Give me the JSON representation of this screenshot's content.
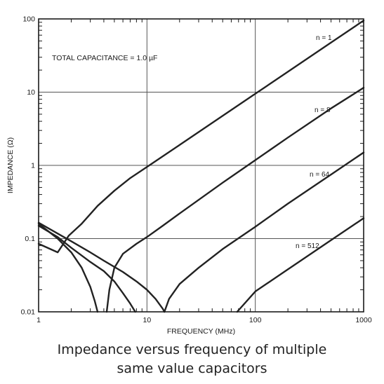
{
  "chart_data": {
    "type": "line",
    "xlabel": "FREQUENCY (MHz)",
    "ylabel": "IMPEDANCE (Ω)",
    "x_scale": "log",
    "y_scale": "log",
    "xlim": [
      1,
      1000
    ],
    "ylim": [
      0.01,
      100
    ],
    "x_ticks": [
      1,
      10,
      100,
      1000
    ],
    "x_tick_labels": [
      "1",
      "10",
      "100",
      "1000"
    ],
    "y_ticks": [
      0.01,
      0.1,
      1,
      10,
      100
    ],
    "y_tick_labels": [
      "0.01",
      "0.1",
      "1",
      "10",
      "100"
    ],
    "grid": true,
    "annotation": "TOTAL CAPACITANCE = 1.0 µF",
    "series": [
      {
        "label": "n = 1",
        "points": [
          [
            1,
            0.085
          ],
          [
            1.5,
            0.065
          ],
          [
            1.9,
            0.11
          ],
          [
            2.5,
            0.16
          ],
          [
            3.5,
            0.28
          ],
          [
            5,
            0.45
          ],
          [
            7,
            0.67
          ],
          [
            10,
            0.95
          ],
          [
            20,
            1.9
          ],
          [
            50,
            4.75
          ],
          [
            100,
            9.5
          ],
          [
            200,
            19
          ],
          [
            500,
            47.5
          ],
          [
            1000,
            95
          ]
        ]
      },
      {
        "label": "n = 8",
        "points": [
          [
            4.25,
            0.01
          ],
          [
            4.5,
            0.02
          ],
          [
            5,
            0.04
          ],
          [
            6,
            0.062
          ],
          [
            8,
            0.085
          ],
          [
            10,
            0.105
          ],
          [
            14,
            0.15
          ],
          [
            20,
            0.22
          ],
          [
            50,
            0.58
          ],
          [
            100,
            1.18
          ],
          [
            200,
            2.4
          ],
          [
            500,
            6
          ],
          [
            1000,
            11.5
          ]
        ]
      },
      {
        "label": "n = 64",
        "points": [
          [
            14.5,
            0.01
          ],
          [
            16,
            0.015
          ],
          [
            20,
            0.024
          ],
          [
            30,
            0.04
          ],
          [
            50,
            0.072
          ],
          [
            100,
            0.145
          ],
          [
            200,
            0.3
          ],
          [
            500,
            0.75
          ],
          [
            1000,
            1.5
          ]
        ]
      },
      {
        "label": "n = 512",
        "points": [
          [
            68,
            0.01
          ],
          [
            100,
            0.019
          ],
          [
            200,
            0.038
          ],
          [
            500,
            0.095
          ],
          [
            1000,
            0.19
          ]
        ]
      },
      {
        "label": "",
        "points": [
          [
            1,
            0.16
          ],
          [
            1.5,
            0.1
          ],
          [
            2,
            0.065
          ],
          [
            2.5,
            0.04
          ],
          [
            3,
            0.022
          ],
          [
            3.3,
            0.014
          ],
          [
            3.5,
            0.01
          ]
        ]
      },
      {
        "label": "",
        "points": [
          [
            1,
            0.15
          ],
          [
            1.5,
            0.105
          ],
          [
            2,
            0.075
          ],
          [
            3,
            0.048
          ],
          [
            4,
            0.036
          ],
          [
            5,
            0.026
          ],
          [
            6,
            0.018
          ],
          [
            7,
            0.013
          ],
          [
            7.8,
            0.01
          ]
        ]
      },
      {
        "label": "",
        "points": [
          [
            1,
            0.165
          ],
          [
            2,
            0.092
          ],
          [
            3,
            0.065
          ],
          [
            4,
            0.05
          ],
          [
            6,
            0.035
          ],
          [
            8,
            0.026
          ],
          [
            10,
            0.02
          ],
          [
            12,
            0.015
          ],
          [
            14,
            0.011
          ],
          [
            14.5,
            0.01
          ]
        ]
      }
    ]
  },
  "caption_lines": [
    "Impedance versus frequency of multiple",
    "same value capacitors"
  ]
}
